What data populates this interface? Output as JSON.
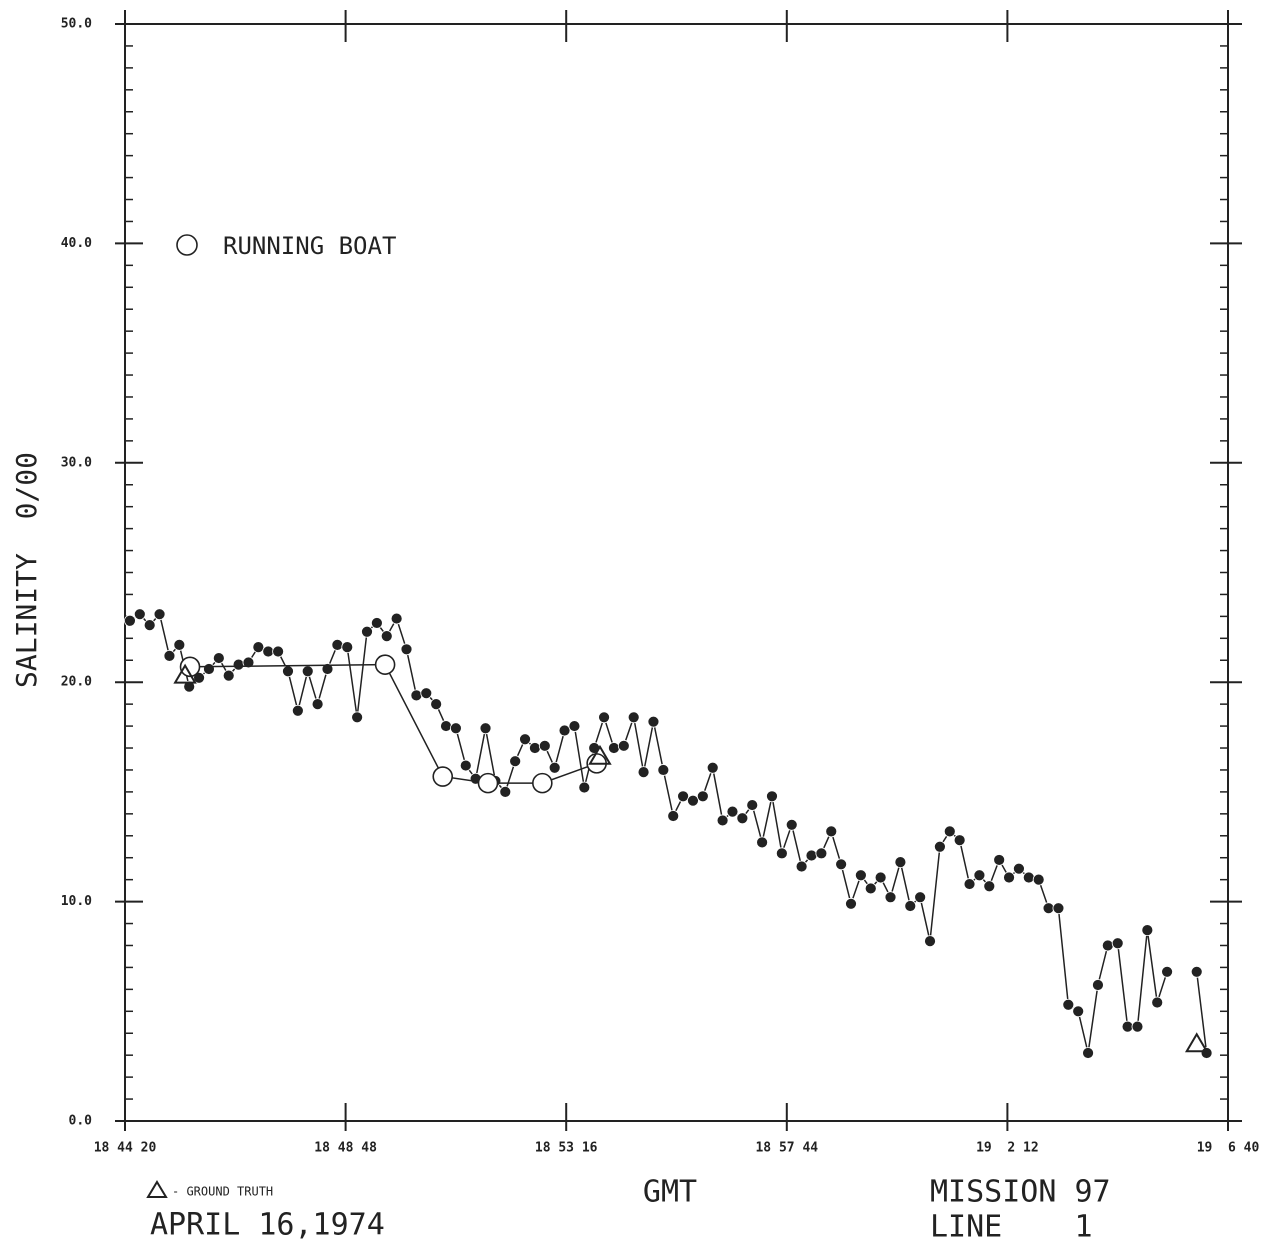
{
  "chart_data": {
    "type": "line",
    "ylabel": "SALINITY  0/00",
    "xlabel": "GMT",
    "date": "APRIL 16,1974",
    "annotations": [
      "MISSION 97",
      "LINE    1"
    ],
    "xlim": [
      67460,
      68800
    ],
    "xticks": [
      {
        "value": 67460,
        "label": "18 44 20"
      },
      {
        "value": 67728,
        "label": "18 48 48"
      },
      {
        "value": 67996,
        "label": "18 53 16"
      },
      {
        "value": 68264,
        "label": "18 57 44"
      },
      {
        "value": 68532,
        "label": "19  2 12"
      },
      {
        "value": 68800,
        "label": "19  6 40"
      }
    ],
    "ylim": [
      0,
      50
    ],
    "yticks": [
      {
        "value": 0,
        "label": "0.0"
      },
      {
        "value": 10,
        "label": "10.0"
      },
      {
        "value": 20,
        "label": "20.0"
      },
      {
        "value": 30,
        "label": "30.0"
      },
      {
        "value": 40,
        "label": "40.0"
      },
      {
        "value": 50,
        "label": "50.0"
      }
    ],
    "yminorticks": [
      1,
      2,
      3,
      4,
      5,
      6,
      7,
      8,
      9,
      11,
      12,
      13,
      14,
      15,
      16,
      17,
      18,
      19,
      21,
      22,
      23,
      24,
      25,
      26,
      27,
      28,
      29,
      31,
      32,
      33,
      34,
      35,
      36,
      37,
      38,
      39,
      41,
      42,
      43,
      44,
      45,
      46,
      47,
      48,
      49
    ],
    "series": [
      {
        "color": "#222222",
        "marker": "filled-circle",
        "line": true,
        "x": [
          67466,
          67478,
          67490,
          67502,
          67514,
          67526,
          67538,
          67550,
          67562,
          67574,
          67586,
          67598,
          67610,
          67622,
          67634,
          67646,
          67658,
          67670,
          67682,
          67694,
          67706,
          67718,
          67730,
          67742,
          67754,
          67766,
          67778,
          67790,
          67802,
          67814,
          67826,
          67838,
          67850,
          67862,
          67874,
          67886,
          67898,
          67910,
          67922,
          67934,
          67946,
          67958,
          67970,
          67982,
          67994,
          68006,
          68018,
          68030,
          68042,
          68054,
          68066,
          68078,
          68090,
          68102,
          68114,
          68126,
          68138,
          68150,
          68162,
          68174,
          68186,
          68198,
          68210,
          68222,
          68234,
          68246,
          68258,
          68270,
          68282,
          68294,
          68306,
          68318,
          68330,
          68342,
          68354,
          68366,
          68378,
          68390,
          68402,
          68414,
          68426,
          68438,
          68450,
          68462,
          68474,
          68486,
          68498,
          68510,
          68522,
          68534,
          68546,
          68558,
          68570,
          68582,
          68594,
          68606,
          68618,
          68630,
          68642,
          68654,
          68666,
          68678,
          68690,
          68702,
          68714,
          68726,
          68738,
          68750,
          68762,
          68774
        ],
        "values": [
          22.8,
          23.1,
          22.6,
          23.1,
          21.2,
          21.7,
          19.8,
          20.2,
          20.6,
          21.1,
          20.3,
          20.8,
          20.9,
          21.6,
          21.4,
          21.4,
          20.5,
          18.7,
          20.5,
          19.0,
          20.6,
          21.7,
          21.6,
          18.4,
          22.3,
          22.7,
          22.1,
          22.9,
          21.5,
          19.4,
          19.5,
          19.0,
          18.0,
          17.9,
          16.2,
          15.6,
          17.9,
          15.5,
          15.0,
          16.4,
          17.4,
          17.0,
          17.1,
          16.1,
          17.8,
          18.0,
          15.2,
          17.0,
          18.4,
          17.0,
          17.1,
          18.4,
          15.9,
          18.2,
          16.0,
          13.9,
          14.8,
          14.6,
          14.8,
          16.1,
          13.7,
          14.1,
          13.8,
          14.4,
          12.7,
          14.8,
          12.2,
          13.5,
          11.6,
          12.1,
          12.2,
          13.2,
          11.7,
          9.9,
          11.2,
          10.6,
          11.1,
          10.2,
          11.8,
          9.8,
          10.2,
          8.2,
          12.5,
          13.2,
          12.8,
          10.8,
          11.2,
          10.7,
          11.9,
          11.1,
          11.5,
          11.1,
          11.0,
          9.7,
          9.7,
          5.3,
          5.0,
          3.1,
          6.2,
          8.0,
          8.1,
          4.3,
          4.3,
          8.7,
          5.4,
          6.8,
          null,
          null,
          6.8,
          3.1
        ]
      },
      {
        "name": "RUNNING BOAT",
        "color": "#222222",
        "marker": "open-circle",
        "line": true,
        "x": [
          67539,
          67776,
          67846,
          67901,
          67967,
          68033
        ],
        "values": [
          20.7,
          20.8,
          15.7,
          15.4,
          15.4,
          16.3
        ]
      },
      {
        "name": "- GROUND TRUTH",
        "color": "#222222",
        "marker": "open-triangle",
        "line": false,
        "x": [
          67533,
          68037,
          68762
        ],
        "values": [
          20.3,
          16.6,
          3.5
        ]
      }
    ]
  }
}
